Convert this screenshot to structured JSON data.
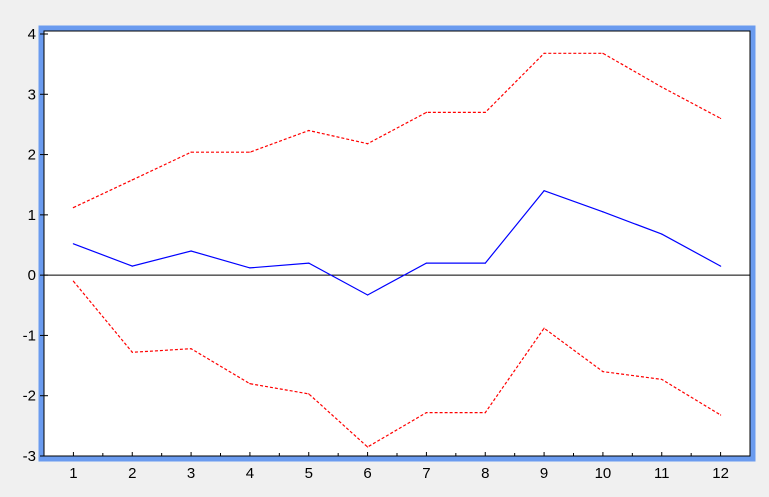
{
  "chart_data": {
    "type": "line",
    "title": "",
    "xlabel": "",
    "ylabel": "",
    "x": [
      1,
      2,
      3,
      4,
      5,
      6,
      7,
      8,
      9,
      10,
      11,
      12
    ],
    "x_tick_labels": [
      "1",
      "2",
      "3",
      "4",
      "5",
      "6",
      "7",
      "8",
      "9",
      "10",
      "11",
      "12"
    ],
    "y_tick_labels": [
      "4",
      "3",
      "2",
      "1",
      "0",
      "-1",
      "-2",
      "-3"
    ],
    "y_ticks": [
      4,
      3,
      2,
      1,
      0,
      -1,
      -2,
      -3
    ],
    "ylim": [
      -3,
      4
    ],
    "xlim": [
      0.5,
      12.5
    ],
    "grid": false,
    "legend": "none",
    "zero_line": 0,
    "series": [
      {
        "values": [
          0.52,
          0.15,
          0.4,
          0.12,
          0.2,
          -0.33,
          0.2,
          0.2,
          1.4,
          1.05,
          0.68,
          0.15
        ],
        "color": "#0000ff",
        "style": "solid"
      },
      {
        "values": [
          1.12,
          1.58,
          2.04,
          2.04,
          2.4,
          2.18,
          2.7,
          2.7,
          3.68,
          3.68,
          3.12,
          2.6
        ],
        "color": "#ff0000",
        "style": "dashed"
      },
      {
        "values": [
          -0.1,
          -1.28,
          -1.22,
          -1.8,
          -1.97,
          -2.85,
          -2.28,
          -2.28,
          -0.88,
          -1.6,
          -1.73,
          -2.32
        ],
        "color": "#ff0000",
        "style": "dashed"
      }
    ]
  },
  "colors": {
    "background": "#f0f0f0",
    "plot_background": "#ffffff",
    "frame_highlight": "#6a9bef",
    "axis": "#000000"
  }
}
